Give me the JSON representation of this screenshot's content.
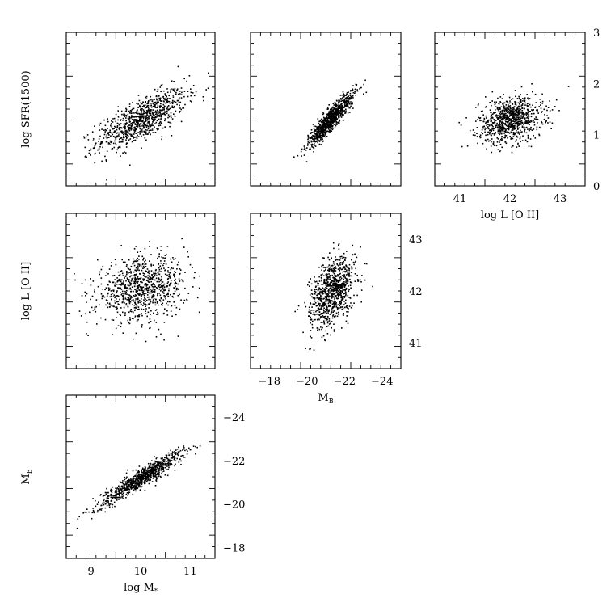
{
  "chart_data": [
    {
      "id": "sfr_vs_mstar",
      "type": "scatter",
      "x_quantity": "log M*",
      "y_quantity": "log SFR(1500)",
      "xlim": [
        8.5,
        11.5
      ],
      "ylim": [
        0,
        3
      ],
      "x_ticks": [],
      "y_ticks": [],
      "xlabel": "",
      "ylabel": "log SFR(1500)",
      "cloud": {
        "n": 900,
        "x_mean": 10.0,
        "x_sd": 0.45,
        "slope": 0.48,
        "y_at_mean": 1.3,
        "y_sd": 0.2
      }
    },
    {
      "id": "sfr_vs_mb",
      "type": "scatter",
      "x_quantity": "M_B",
      "y_quantity": "log SFR(1500)",
      "xlim": [
        -17,
        -25
      ],
      "ylim": [
        0,
        3
      ],
      "x_ticks": [],
      "y_ticks": [],
      "xlabel": "",
      "ylabel": "",
      "cloud": {
        "n": 900,
        "x_mean": -21.2,
        "x_sd": 0.6,
        "slope": -0.4,
        "y_at_mean": 1.3,
        "y_sd": 0.11
      }
    },
    {
      "id": "sfr_vs_loii",
      "type": "scatter",
      "x_quantity": "log L [O II]",
      "y_quantity": "log SFR(1500)",
      "xlim": [
        40.5,
        43.5
      ],
      "ylim": [
        0,
        3
      ],
      "x_ticks": [
        41,
        42,
        43
      ],
      "y_ticks": [
        0,
        1,
        2,
        3
      ],
      "y_axis_side": "right",
      "xlabel": "log L [O II]",
      "ylabel": "",
      "cloud": {
        "n": 900,
        "x_mean": 42.0,
        "x_sd": 0.32,
        "slope": 0.15,
        "y_at_mean": 1.3,
        "y_sd": 0.22
      }
    },
    {
      "id": "loii_vs_mstar",
      "type": "scatter",
      "x_quantity": "log M*",
      "y_quantity": "log L [O II]",
      "xlim": [
        8.5,
        11.5
      ],
      "ylim": [
        40.5,
        43.5
      ],
      "x_ticks": [],
      "y_ticks": [],
      "xlabel": "",
      "ylabel": "log L [O II]",
      "cloud": {
        "n": 900,
        "x_mean": 10.0,
        "x_sd": 0.45,
        "slope": 0.15,
        "y_at_mean": 42.05,
        "y_sd": 0.3
      }
    },
    {
      "id": "loii_vs_mb",
      "type": "scatter",
      "x_quantity": "M_B",
      "y_quantity": "log L [O II]",
      "xlim": [
        -17,
        -25
      ],
      "ylim": [
        40.5,
        43.5
      ],
      "x_ticks": [
        -18,
        -20,
        -22,
        -24
      ],
      "y_ticks": [
        41,
        42,
        43
      ],
      "y_axis_side": "right",
      "xlabel": "M",
      "xlabel_sub": "B",
      "ylabel": "",
      "cloud": {
        "n": 900,
        "x_mean": -21.3,
        "x_sd": 0.6,
        "slope": -0.25,
        "y_at_mean": 42.0,
        "y_sd": 0.3
      }
    },
    {
      "id": "mb_vs_mstar",
      "type": "scatter",
      "x_quantity": "log M*",
      "y_quantity": "M_B",
      "xlim": [
        8.5,
        11.5
      ],
      "ylim": [
        -17.5,
        -25.0
      ],
      "x_ticks": [
        9,
        10,
        11
      ],
      "y_ticks": [
        -18,
        -20,
        -22,
        -24
      ],
      "y_axis_side": "right",
      "xlabel": "log M",
      "xlabel_sub": "*",
      "ylabel": "M",
      "ylabel_sub": "B",
      "cloud": {
        "n": 900,
        "x_mean": 10.0,
        "x_sd": 0.4,
        "slope": -1.4,
        "y_at_mean": -21.2,
        "y_sd": 0.22
      }
    }
  ]
}
